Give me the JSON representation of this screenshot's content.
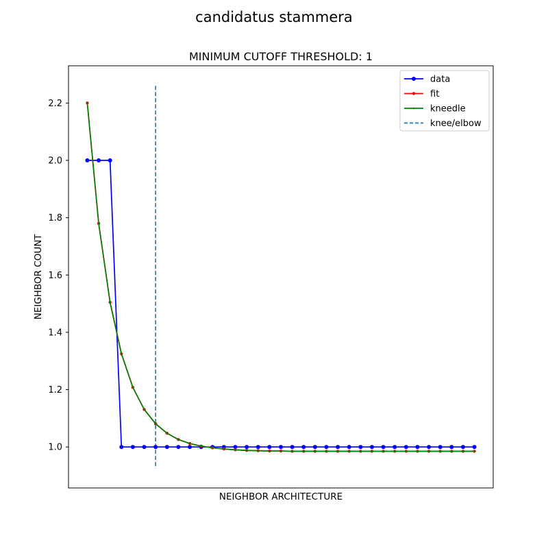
{
  "chart_data": {
    "type": "line",
    "suptitle": "candidatus stammera",
    "title": "MINIMUM CUTOFF THRESHOLD: 1",
    "xlabel": "NEIGHBOR ARCHITECTURE",
    "ylabel": "NEIGHBOR COUNT",
    "x": [
      1,
      2,
      3,
      4,
      5,
      6,
      7,
      8,
      9,
      10,
      11,
      12,
      13,
      14,
      15,
      16,
      17,
      18,
      19,
      20,
      21,
      22,
      23,
      24,
      25,
      26,
      27,
      28,
      29,
      30,
      31,
      32,
      33,
      34,
      35
    ],
    "xlim": [
      -0.65,
      36.65
    ],
    "ylim": [
      0.857,
      2.33
    ],
    "yticks": [
      1.0,
      1.2,
      1.4,
      1.6,
      1.8,
      2.0,
      2.2
    ],
    "xticks_visible": false,
    "grid": false,
    "legend_position": "top-right",
    "series": [
      {
        "name": "data",
        "color": "#0000ff",
        "marker": "circle",
        "values": [
          2,
          2,
          2,
          1,
          1,
          1,
          1,
          1,
          1,
          1,
          1,
          1,
          1,
          1,
          1,
          1,
          1,
          1,
          1,
          1,
          1,
          1,
          1,
          1,
          1,
          1,
          1,
          1,
          1,
          1,
          1,
          1,
          1,
          1,
          1
        ]
      },
      {
        "name": "fit",
        "color": "#ff0000",
        "marker": "small-dot",
        "values": [
          2.2,
          1.78,
          1.505,
          1.325,
          1.208,
          1.131,
          1.081,
          1.048,
          1.026,
          1.012,
          1.003,
          0.997,
          0.993,
          0.99,
          0.988,
          0.987,
          0.986,
          0.986,
          0.985,
          0.985,
          0.985,
          0.985,
          0.985,
          0.985,
          0.985,
          0.985,
          0.985,
          0.985,
          0.985,
          0.985,
          0.985,
          0.985,
          0.985,
          0.985,
          0.985
        ]
      },
      {
        "name": "kneedle",
        "color": "#008000",
        "marker": "tiny-dot",
        "values": [
          2.2,
          1.78,
          1.505,
          1.325,
          1.208,
          1.131,
          1.081,
          1.048,
          1.026,
          1.012,
          1.003,
          0.997,
          0.993,
          0.99,
          0.988,
          0.987,
          0.986,
          0.986,
          0.985,
          0.985,
          0.985,
          0.985,
          0.985,
          0.985,
          0.985,
          0.985,
          0.985,
          0.985,
          0.985,
          0.985,
          0.985,
          0.985,
          0.985,
          0.985,
          0.985
        ]
      }
    ],
    "knee": {
      "name": "knee/elbow",
      "x": 7,
      "color": "#1f77b4",
      "style": "dashed",
      "y_range": [
        0.925,
        2.26
      ]
    }
  }
}
